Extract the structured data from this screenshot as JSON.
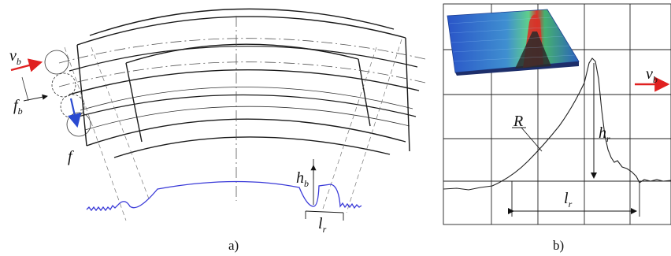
{
  "panel_a": {
    "caption": "a)",
    "labels": {
      "vb_main": "v",
      "vb_sub": "b",
      "fb_main": "f",
      "fb_sub": "b",
      "f": "f",
      "hb_main": "h",
      "hb_sub": "b",
      "lr_main": "l",
      "lr_sub": "r"
    },
    "colors": {
      "arrow_vb": "#e02020",
      "arrow_f": "#2a4ad0",
      "profile": "#3a3ad8"
    }
  },
  "panel_b": {
    "caption": "b)",
    "labels": {
      "vb_main": "v",
      "vb_sub": "b",
      "R": "R",
      "hr_main": "h",
      "hr_sub": "r",
      "lr_main": "l",
      "lr_sub": "r"
    },
    "colors": {
      "arrow_vb": "#e02020"
    }
  }
}
